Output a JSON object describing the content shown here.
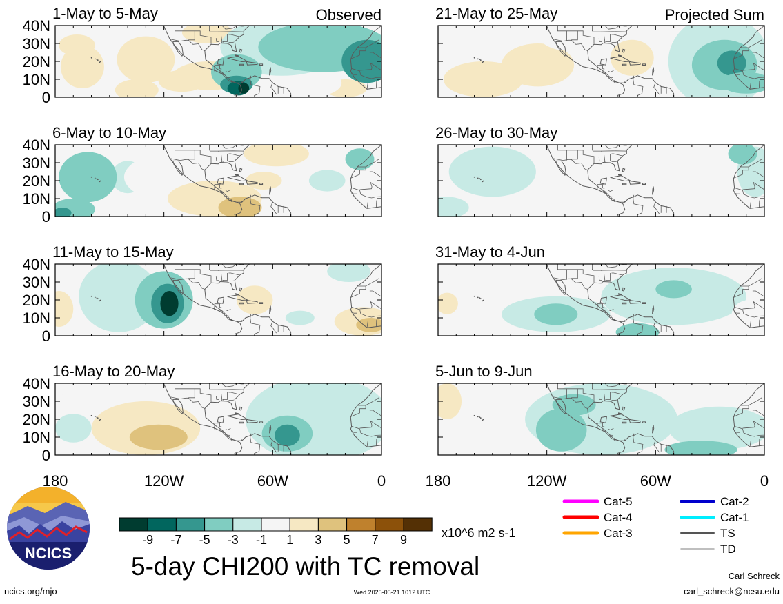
{
  "panels": [
    {
      "title": "1-May to 5-May",
      "tag": "Observed",
      "column": "left",
      "blobs": [
        {
          "lon": -130,
          "lat": 21,
          "rx": 16,
          "ry": 13,
          "val": 3
        },
        {
          "lon": -95,
          "lat": 12,
          "rx": 20,
          "ry": 8,
          "val": 3
        },
        {
          "lon": -165,
          "lat": 17,
          "rx": 12,
          "ry": 12,
          "val": 3
        },
        {
          "lon": -168,
          "lat": 29,
          "rx": 10,
          "ry": 6,
          "val": 3
        },
        {
          "lon": -135,
          "lat": 4,
          "rx": 12,
          "ry": 6,
          "val": 3
        },
        {
          "lon": -96,
          "lat": 36,
          "rx": 14,
          "ry": 6,
          "val": 3
        },
        {
          "lon": -110,
          "lat": 9,
          "rx": 13,
          "ry": 6,
          "val": 3
        },
        {
          "lon": -20,
          "lat": 5,
          "rx": 12,
          "ry": 5,
          "val": 3
        },
        {
          "lon": -40,
          "lat": 8,
          "rx": 18,
          "ry": 8,
          "val": 1
        },
        {
          "lon": -55,
          "lat": 28,
          "rx": 34,
          "ry": 16,
          "val": -1
        },
        {
          "lon": -32,
          "lat": 28,
          "rx": 36,
          "ry": 14,
          "val": -3
        },
        {
          "lon": -8,
          "lat": 20,
          "rx": 14,
          "ry": 12,
          "val": -5
        },
        {
          "lon": -80,
          "lat": 14,
          "rx": 14,
          "ry": 10,
          "val": -3
        },
        {
          "lon": -80,
          "lat": 7,
          "rx": 9,
          "ry": 5,
          "val": -5
        },
        {
          "lon": -79,
          "lat": 5,
          "rx": 6,
          "ry": 4,
          "val": -7
        },
        {
          "lon": -76,
          "lat": 5,
          "rx": 3,
          "ry": 3,
          "val": -9
        }
      ]
    },
    {
      "title": "21-May to 25-May",
      "tag": "Projected Sum",
      "column": "right",
      "blobs": [
        {
          "lon": -160,
          "lat": 20,
          "rx": 30,
          "ry": 20,
          "val": 1
        },
        {
          "lon": -155,
          "lat": 10,
          "rx": 22,
          "ry": 10,
          "val": 3
        },
        {
          "lon": -125,
          "lat": 18,
          "rx": 20,
          "ry": 12,
          "val": 3
        },
        {
          "lon": -108,
          "lat": 34,
          "rx": 16,
          "ry": 8,
          "val": 1
        },
        {
          "lon": -73,
          "lat": 22,
          "rx": 12,
          "ry": 10,
          "val": 3
        },
        {
          "lon": -25,
          "lat": 20,
          "rx": 28,
          "ry": 26,
          "val": -1
        },
        {
          "lon": -22,
          "lat": 18,
          "rx": 18,
          "ry": 14,
          "val": -3
        },
        {
          "lon": -18,
          "lat": 19,
          "rx": 8,
          "ry": 7,
          "val": -5
        },
        {
          "lon": -10,
          "lat": 8,
          "rx": 14,
          "ry": 6,
          "val": -3
        }
      ]
    },
    {
      "title": "6-May to 10-May",
      "tag": "",
      "column": "left",
      "blobs": [
        {
          "lon": -140,
          "lat": 22,
          "rx": 9,
          "ry": 9,
          "val": -1
        },
        {
          "lon": -162,
          "lat": 22,
          "rx": 16,
          "ry": 14,
          "val": -3
        },
        {
          "lon": -170,
          "lat": 4,
          "rx": 12,
          "ry": 6,
          "val": -3
        },
        {
          "lon": -176,
          "lat": 2,
          "rx": 5,
          "ry": 3,
          "val": -5
        },
        {
          "lon": -80,
          "lat": 22,
          "rx": 62,
          "ry": 20,
          "val": 1
        },
        {
          "lon": -92,
          "lat": 10,
          "rx": 26,
          "ry": 10,
          "val": 3
        },
        {
          "lon": -58,
          "lat": 35,
          "rx": 18,
          "ry": 7,
          "val": 3
        },
        {
          "lon": -65,
          "lat": 20,
          "rx": 10,
          "ry": 5,
          "val": 3
        },
        {
          "lon": -78,
          "lat": 5,
          "rx": 12,
          "ry": 6,
          "val": 5
        },
        {
          "lon": -5,
          "lat": 15,
          "rx": 8,
          "ry": 14,
          "val": 1
        },
        {
          "lon": -30,
          "lat": 20,
          "rx": 10,
          "ry": 6,
          "val": -1
        },
        {
          "lon": -12,
          "lat": 32,
          "rx": 8,
          "ry": 6,
          "val": -3
        }
      ]
    },
    {
      "title": "26-May to 30-May",
      "tag": "",
      "column": "right",
      "blobs": [
        {
          "lon": -150,
          "lat": 25,
          "rx": 24,
          "ry": 14,
          "val": -1
        },
        {
          "lon": -175,
          "lat": 5,
          "rx": 12,
          "ry": 6,
          "val": -1
        },
        {
          "lon": -95,
          "lat": 32,
          "rx": 24,
          "ry": 10,
          "val": 1
        },
        {
          "lon": -55,
          "lat": 20,
          "rx": 22,
          "ry": 12,
          "val": 1
        },
        {
          "lon": -65,
          "lat": 8,
          "rx": 28,
          "ry": 8,
          "val": 1
        },
        {
          "lon": -5,
          "lat": 25,
          "rx": 10,
          "ry": 14,
          "val": -1
        },
        {
          "lon": -12,
          "lat": 35,
          "rx": 8,
          "ry": 6,
          "val": -3
        }
      ]
    },
    {
      "title": "11-May to 15-May",
      "tag": "",
      "column": "left",
      "blobs": [
        {
          "lon": -178,
          "lat": 15,
          "rx": 8,
          "ry": 10,
          "val": 3
        },
        {
          "lon": -145,
          "lat": 22,
          "rx": 22,
          "ry": 20,
          "val": -1
        },
        {
          "lon": -120,
          "lat": 20,
          "rx": 16,
          "ry": 16,
          "val": -3
        },
        {
          "lon": -118,
          "lat": 18,
          "rx": 9,
          "ry": 11,
          "val": -5
        },
        {
          "lon": -117,
          "lat": 18,
          "rx": 5,
          "ry": 7,
          "val": -9
        },
        {
          "lon": -75,
          "lat": 15,
          "rx": 22,
          "ry": 14,
          "val": 1
        },
        {
          "lon": -70,
          "lat": 20,
          "rx": 10,
          "ry": 8,
          "val": 3
        },
        {
          "lon": -50,
          "lat": 30,
          "rx": 16,
          "ry": 8,
          "val": 1
        },
        {
          "lon": -45,
          "lat": 10,
          "rx": 8,
          "ry": 4,
          "val": -1
        },
        {
          "lon": -10,
          "lat": 8,
          "rx": 16,
          "ry": 8,
          "val": 3
        },
        {
          "lon": -6,
          "lat": 6,
          "rx": 8,
          "ry": 4,
          "val": 5
        },
        {
          "lon": -18,
          "lat": 36,
          "rx": 12,
          "ry": 6,
          "val": -1
        }
      ]
    },
    {
      "title": "31-May to 4-Jun",
      "tag": "",
      "column": "right",
      "blobs": [
        {
          "lon": -175,
          "lat": 20,
          "rx": 10,
          "ry": 14,
          "val": 1
        },
        {
          "lon": -175,
          "lat": 18,
          "rx": 6,
          "ry": 6,
          "val": 3
        },
        {
          "lon": -115,
          "lat": 12,
          "rx": 30,
          "ry": 10,
          "val": -1
        },
        {
          "lon": -115,
          "lat": 12,
          "rx": 12,
          "ry": 6,
          "val": -3
        },
        {
          "lon": -50,
          "lat": 22,
          "rx": 40,
          "ry": 16,
          "val": -1
        },
        {
          "lon": -50,
          "lat": 26,
          "rx": 10,
          "ry": 5,
          "val": -3
        },
        {
          "lon": -70,
          "lat": 2,
          "rx": 12,
          "ry": 5,
          "val": -3
        },
        {
          "lon": -8,
          "lat": 12,
          "rx": 10,
          "ry": 8,
          "val": 1
        }
      ]
    },
    {
      "title": "16-May to 20-May",
      "tag": "",
      "column": "left",
      "blobs": [
        {
          "lon": -140,
          "lat": 25,
          "rx": 40,
          "ry": 20,
          "val": 1
        },
        {
          "lon": -130,
          "lat": 15,
          "rx": 30,
          "ry": 15,
          "val": 3
        },
        {
          "lon": -123,
          "lat": 10,
          "rx": 16,
          "ry": 7,
          "val": 5
        },
        {
          "lon": -170,
          "lat": 15,
          "rx": 10,
          "ry": 8,
          "val": -1
        },
        {
          "lon": -80,
          "lat": 30,
          "rx": 12,
          "ry": 6,
          "val": 1
        },
        {
          "lon": -35,
          "lat": 20,
          "rx": 40,
          "ry": 24,
          "val": -1
        },
        {
          "lon": -52,
          "lat": 12,
          "rx": 14,
          "ry": 10,
          "val": -3
        },
        {
          "lon": -52,
          "lat": 11,
          "rx": 7,
          "ry": 6,
          "val": -5
        }
      ]
    },
    {
      "title": "5-Jun to 9-Jun",
      "tag": "",
      "column": "right",
      "blobs": [
        {
          "lon": -175,
          "lat": 30,
          "rx": 8,
          "ry": 10,
          "val": 3
        },
        {
          "lon": -150,
          "lat": 20,
          "rx": 16,
          "ry": 14,
          "val": 1
        },
        {
          "lon": -90,
          "lat": 20,
          "rx": 42,
          "ry": 20,
          "val": -1
        },
        {
          "lon": -112,
          "lat": 14,
          "rx": 14,
          "ry": 12,
          "val": -3
        },
        {
          "lon": -105,
          "lat": 28,
          "rx": 12,
          "ry": 6,
          "val": -3
        },
        {
          "lon": -25,
          "lat": 15,
          "rx": 28,
          "ry": 12,
          "val": -1
        },
        {
          "lon": -35,
          "lat": 3,
          "rx": 20,
          "ry": 5,
          "val": -3
        }
      ]
    }
  ],
  "lat_labels": [
    "40N",
    "30N",
    "20N",
    "10N",
    "0"
  ],
  "lon_labels": [
    "180",
    "120W",
    "60W",
    "0"
  ],
  "colorbar": {
    "colors": [
      "#003c30",
      "#01665e",
      "#35978f",
      "#80cdc1",
      "#c7eae5",
      "#f5f5f5",
      "#f6e8c3",
      "#dfc27d",
      "#bf812d",
      "#8c510a",
      "#543005"
    ],
    "labels": [
      "-9",
      "-7",
      "-5",
      "-3",
      "-1",
      "1",
      "3",
      "5",
      "7",
      "9"
    ],
    "units": "x10^6 m2 s-1"
  },
  "legend": [
    {
      "label": "Cat-5",
      "color": "#ff00ff",
      "width": 5
    },
    {
      "label": "Cat-4",
      "color": "#ff0000",
      "width": 5
    },
    {
      "label": "Cat-3",
      "color": "#ffa500",
      "width": 5
    },
    {
      "label": "Cat-2",
      "color": "#0000cd",
      "width": 4
    },
    {
      "label": "Cat-1",
      "color": "#00eeff",
      "width": 4
    },
    {
      "label": "TS",
      "color": "#555555",
      "width": 2
    },
    {
      "label": "TD",
      "color": "#aaaaaa",
      "width": 1.5
    }
  ],
  "title": "5-day CHI200 with TC removal",
  "logo_text": "NCICS",
  "footer": {
    "left": "ncics.org/mjo",
    "center": "Wed 2025-05-21 1012 UTC",
    "author": "Carl Schreck",
    "email": "carl_schreck@ncsu.edu"
  }
}
